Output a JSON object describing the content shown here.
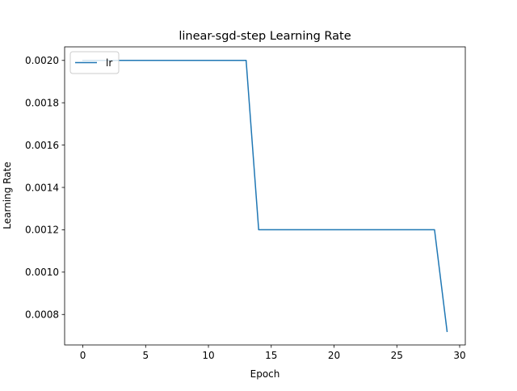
{
  "chart_data": {
    "type": "line",
    "title": "linear-sgd-step  Learning Rate",
    "xlabel": "Epoch",
    "ylabel": "Learning Rate",
    "xlim": [
      -1.45,
      30.45
    ],
    "ylim": [
      0.000656,
      0.002064
    ],
    "xticks": [
      0,
      5,
      10,
      15,
      20,
      25,
      30
    ],
    "yticks": [
      0.0008,
      0.001,
      0.0012,
      0.0014,
      0.0016,
      0.0018,
      0.002
    ],
    "ytick_labels": [
      "0.0008",
      "0.0010",
      "0.0012",
      "0.0014",
      "0.0016",
      "0.0018",
      "0.0020"
    ],
    "grid": false,
    "legend_location": "upper left",
    "series": [
      {
        "name": "lr",
        "color": "#1f77b4",
        "x": [
          0,
          1,
          2,
          3,
          4,
          5,
          6,
          7,
          8,
          9,
          10,
          11,
          12,
          13,
          14,
          15,
          16,
          17,
          18,
          19,
          20,
          21,
          22,
          23,
          24,
          25,
          26,
          27,
          28,
          29
        ],
        "y": [
          0.002,
          0.002,
          0.002,
          0.002,
          0.002,
          0.002,
          0.002,
          0.002,
          0.002,
          0.002,
          0.002,
          0.002,
          0.002,
          0.002,
          0.0012,
          0.0012,
          0.0012,
          0.0012,
          0.0012,
          0.0012,
          0.0012,
          0.0012,
          0.0012,
          0.0012,
          0.0012,
          0.0012,
          0.0012,
          0.0012,
          0.0012,
          0.00072
        ]
      }
    ]
  }
}
